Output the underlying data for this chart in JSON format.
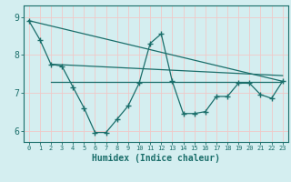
{
  "xlabel": "Humidex (Indice chaleur)",
  "background_color": "#d4eef0",
  "grid_color": "#f0c8c8",
  "line_color": "#1a6e6a",
  "ylim": [
    5.7,
    9.3
  ],
  "xlim": [
    -0.5,
    23.5
  ],
  "yticks": [
    6,
    7,
    8,
    9
  ],
  "xticks": [
    0,
    1,
    2,
    3,
    4,
    5,
    6,
    7,
    8,
    9,
    10,
    11,
    12,
    13,
    14,
    15,
    16,
    17,
    18,
    19,
    20,
    21,
    22,
    23
  ],
  "series1_x": [
    0,
    1,
    2,
    3,
    4,
    5,
    6,
    7,
    8,
    9,
    10,
    11,
    12,
    13,
    14,
    15,
    16,
    17,
    18,
    19,
    20,
    21,
    22,
    23
  ],
  "series1_y": [
    8.9,
    8.4,
    7.75,
    7.7,
    7.15,
    6.6,
    5.95,
    5.95,
    6.3,
    6.65,
    7.25,
    8.3,
    8.55,
    7.3,
    6.45,
    6.45,
    6.5,
    6.9,
    6.9,
    7.25,
    7.25,
    6.95,
    6.85,
    7.3
  ],
  "line1_x": [
    0,
    23
  ],
  "line1_y": [
    8.9,
    7.3
  ],
  "line2_x": [
    2,
    23
  ],
  "line2_y": [
    7.75,
    7.45
  ],
  "line3_x": [
    2,
    23
  ],
  "line3_y": [
    7.28,
    7.28
  ]
}
